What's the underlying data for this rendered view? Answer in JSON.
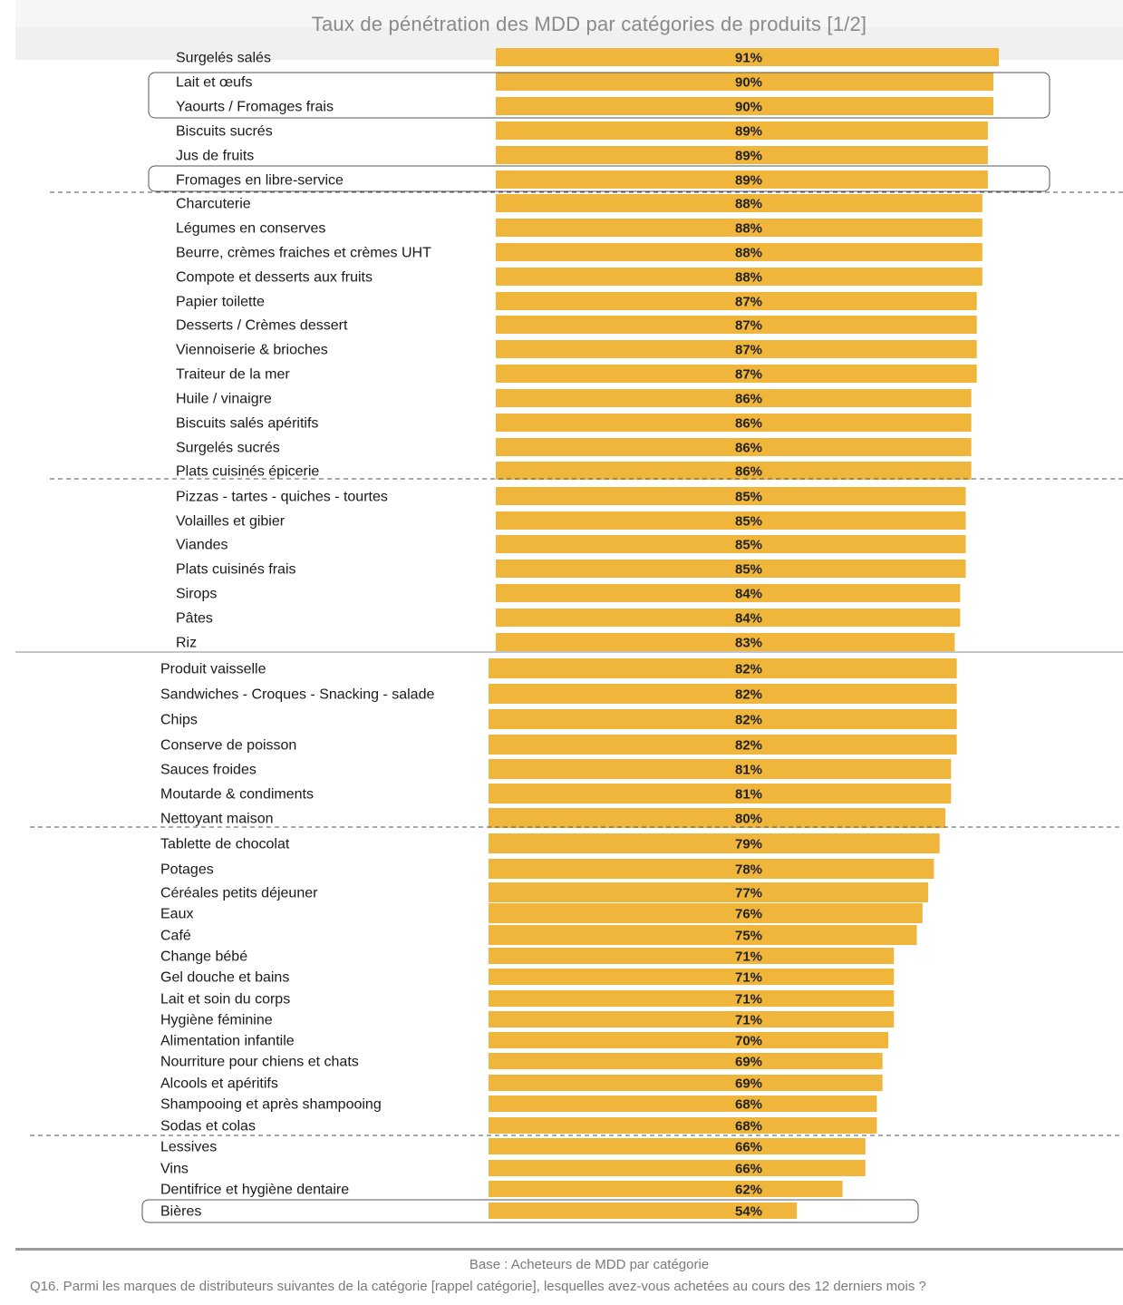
{
  "colors": {
    "bar": "#f0b63c",
    "title": "#8a8a8a",
    "footer_text": "#7a7a7a"
  },
  "chart_data": {
    "type": "bar",
    "orientation": "horizontal",
    "title": "Taux de pénétration des MDD par catégories de produits [1/2]",
    "xlim": [
      0,
      100
    ],
    "value_suffix": "%",
    "categories": [
      "Surgelés salés",
      "Lait et œufs",
      "Yaourts / Fromages frais",
      "Biscuits sucrés",
      "Jus de fruits",
      "Fromages en libre-service",
      "Charcuterie",
      "Légumes en conserves",
      "Beurre, crèmes fraiches et crèmes UHT",
      "Compote et desserts aux fruits",
      "Papier toilette",
      "Desserts / Crèmes dessert",
      "Viennoiserie & brioches",
      "Traiteur de la mer",
      "Huile / vinaigre",
      "Biscuits salés apéritifs",
      "Surgelés sucrés",
      "Plats cuisinés épicerie",
      "Pizzas - tartes - quiches - tourtes",
      "Volailles et gibier",
      "Viandes",
      "Plats cuisinés frais",
      "Sirops",
      "Pâtes",
      "Riz",
      "Produit vaisselle",
      "Sandwiches - Croques - Snacking - salade",
      "Chips",
      "Conserve de poisson",
      "Sauces froides",
      "Moutarde & condiments",
      "Nettoyant maison",
      "Tablette de chocolat",
      "Potages",
      "Céréales petits déjeuner",
      "Eaux",
      "Café",
      "Change bébé",
      "Gel douche et bains",
      "Lait et soin du corps",
      "Hygiène féminine",
      "Alimentation infantile",
      "Nourriture pour chiens et chats",
      "Alcools et apéritifs",
      "Shampooing et après shampooing",
      "Sodas et colas",
      "Lessives",
      "Vins",
      "Dentifrice et hygiène dentaire",
      "Bières"
    ],
    "values": [
      91,
      90,
      90,
      89,
      89,
      89,
      88,
      88,
      88,
      88,
      87,
      87,
      87,
      87,
      86,
      86,
      86,
      86,
      85,
      85,
      85,
      85,
      84,
      84,
      83,
      82,
      82,
      82,
      82,
      81,
      81,
      80,
      79,
      78,
      77,
      76,
      75,
      71,
      71,
      71,
      71,
      70,
      69,
      69,
      68,
      68,
      66,
      66,
      62,
      54
    ],
    "highlighted": [
      "Lait et œufs",
      "Yaourts / Fromages frais",
      "Fromages en libre-service",
      "Bières"
    ]
  },
  "footer": {
    "base": "Base : Acheteurs de MDD par catégorie",
    "question": "Q16. Parmi les marques de distributeurs suivantes de la catégorie [rappel catégorie], lesquelles avez-vous achetées au cours des 12 derniers mois ?"
  }
}
